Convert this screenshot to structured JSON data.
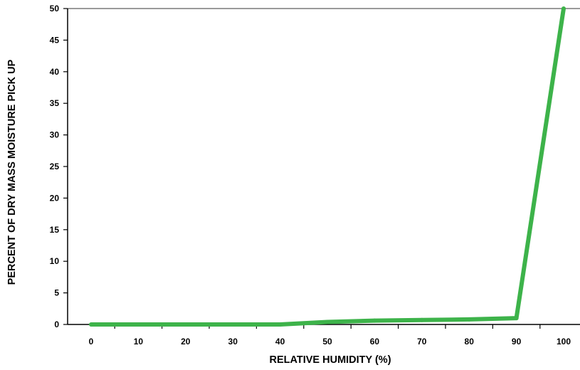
{
  "chart_data": {
    "type": "line",
    "title": "",
    "xlabel": "RELATIVE HUMIDITY (%)",
    "ylabel": "PERCENT OF DRY MASS MOISTURE PICK UP",
    "x": [
      0,
      10,
      20,
      30,
      40,
      50,
      60,
      70,
      80,
      90,
      100
    ],
    "series": [
      {
        "values": [
          0,
          0,
          0,
          0,
          0,
          0.4,
          0.6,
          0.7,
          0.8,
          1.0,
          50
        ]
      }
    ],
    "x_ticks": [
      "0",
      "10",
      "20",
      "30",
      "40",
      "50",
      "60",
      "70",
      "80",
      "90",
      "100"
    ],
    "y_ticks": [
      "0",
      "5",
      "10",
      "15",
      "20",
      "25",
      "30",
      "35",
      "40",
      "45",
      "50"
    ],
    "ylim": [
      0,
      50
    ],
    "grid": false,
    "legend": "none",
    "colors": {
      "line": "#3db34a",
      "axis": "#000000",
      "top_border": "#9a9a9a"
    }
  }
}
